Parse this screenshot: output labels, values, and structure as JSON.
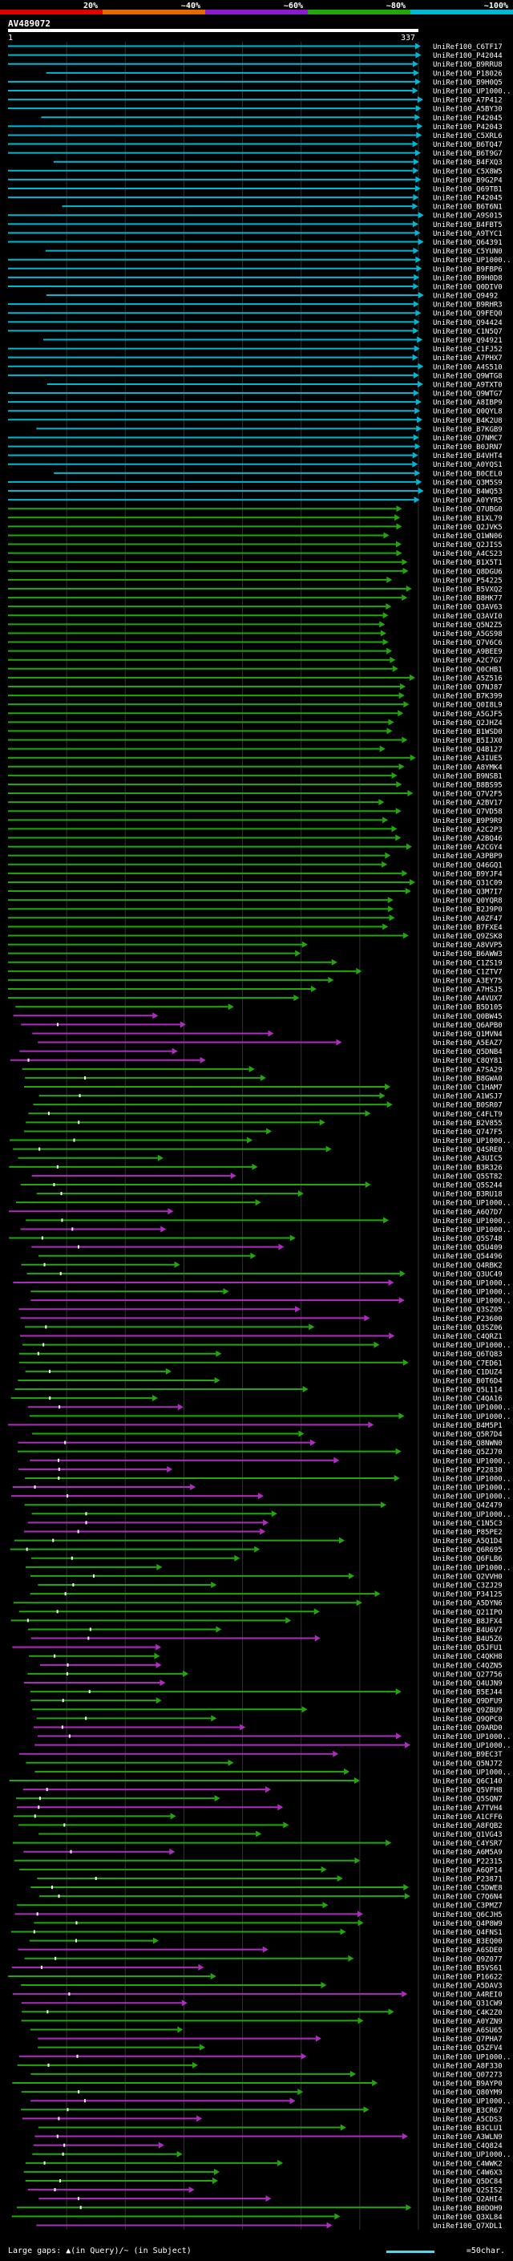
{
  "query_id": "AV489072",
  "length_start": "1",
  "length_end": "337",
  "legend": {
    "ticks": [
      "20%",
      "~40%",
      "~60%",
      "~80%",
      "~100%"
    ],
    "colors": [
      "#e00000",
      "#e46a00",
      "#8c1ad1",
      "#22a80b",
      "#00b8d4"
    ]
  },
  "footer": {
    "gaps_text": "Large gaps: ▲(in Query)/~ (in Subject)",
    "scale_text": "=50char."
  },
  "subjects": [
    "UniRef100_C6TF17",
    "UniRef100_P42044",
    "UniRef100_B9RRU8",
    "UniRef100_P18026",
    "UniRef100_B9H0Q5",
    "UniRef100_UP1000..",
    "UniRef100_A7P412",
    "UniRef100_A5BY30",
    "UniRef100_P42045",
    "UniRef100_P42043",
    "UniRef100_C5XRL6",
    "UniRef100_B6TQ47",
    "UniRef100_B6T9G7",
    "UniRef100_B4FXQ3",
    "UniRef100_C5X8W5",
    "UniRef100_B9G2P4",
    "UniRef100_Q69TB1",
    "UniRef100_P42045",
    "UniRef100_B6T6N1",
    "UniRef100_A9S015",
    "UniRef100_B4FBT5",
    "UniRef100_A9TYC1",
    "UniRef100_Q64391",
    "UniRef100_C5YUN0",
    "UniRef100_UP1000..",
    "UniRef100_B9FBP6",
    "UniRef100_B9H0D8",
    "UniRef100_Q0DIV0",
    "UniRef100_Q9492",
    "UniRef100_B9RHR3",
    "UniRef100_Q9FEQ0",
    "UniRef100_Q94424",
    "UniRef100_C1N5Q7",
    "UniRef100_Q94921",
    "UniRef100_C1FJ52",
    "UniRef100_A7PHX7",
    "UniRef100_A4S510",
    "UniRef100_Q9WTG8",
    "UniRef100_A9TXT0",
    "UniRef100_Q9WTG7",
    "UniRef100_A8IBP9",
    "UniRef100_Q0QYL8",
    "UniRef100_B4K2U8",
    "UniRef100_B7KGB9",
    "UniRef100_Q7NMC7",
    "UniRef100_B0JRN7",
    "UniRef100_B4VHT4",
    "UniRef100_A0YQS1",
    "UniRef100_B0CEL0",
    "UniRef100_Q3M5S9",
    "UniRef100_B4WQ53",
    "UniRef100_A0YYR5",
    "UniRef100_Q7UBG0",
    "UniRef100_B1XL79",
    "UniRef100_Q2JVK5",
    "UniRef100_Q1WN06",
    "UniRef100_Q2JIS5",
    "UniRef100_A4CS23",
    "UniRef100_B1X5T1",
    "UniRef100_Q8DGU6",
    "UniRef100_P54225",
    "UniRef100_B5VXQ2",
    "UniRef100_B8HK77",
    "UniRef100_Q3AV63",
    "UniRef100_Q3AVI0",
    "UniRef100_Q5N2Z5",
    "UniRef100_A5GS98",
    "UniRef100_Q7V6C6",
    "UniRef100_A9BEE9",
    "UniRef100_A2C7G7",
    "UniRef100_Q0CHB1",
    "UniRef100_A5Z516",
    "UniRef100_Q7NJ87",
    "UniRef100_B7K399",
    "UniRef100_Q0I8L9",
    "UniRef100_A5GJF5",
    "UniRef100_Q2JHZ4",
    "UniRef100_B1WSD0",
    "UniRef100_B5IJX0",
    "UniRef100_Q4B127",
    "UniRef100_A3IUE5",
    "UniRef100_A8YMK4",
    "UniRef100_B9NSB1",
    "UniRef100_B8BS95",
    "UniRef100_Q7V2F5",
    "UniRef100_A2BV17",
    "UniRef100_Q7VD58",
    "UniRef100_B9P9R9",
    "UniRef100_A2C2P3",
    "UniRef100_A2BQ46",
    "UniRef100_A2CGY4",
    "UniRef100_A3PBP9",
    "UniRef100_Q46GQ1",
    "UniRef100_B9YJF4",
    "UniRef100_Q31C09",
    "UniRef100_Q3M7I7",
    "UniRef100_Q0YQR8",
    "UniRef100_B2J9P0",
    "UniRef100_A0ZF47",
    "UniRef100_B7FXE4",
    "UniRef100_Q9ZSK8",
    "UniRef100_A8VVP5",
    "UniRef100_B6AWW3",
    "UniRef100_C1ZS19",
    "UniRef100_C1ZTV7",
    "UniRef100_A3EY75",
    "UniRef100_A7HSJ5",
    "UniRef100_A4VUX7",
    "UniRef100_B5D105",
    "UniRef100_Q0BW45",
    "UniRef100_Q6APB0",
    "UniRef100_Q1MVN4",
    "UniRef100_A5EAZ7",
    "UniRef100_Q5DNB4",
    "UniRef100_C8QY81",
    "UniRef100_A7SA29",
    "UniRef100_B8GWA0",
    "UniRef100_C1HAM7",
    "UniRef100_A1WSJ7",
    "UniRef100_B0SR07",
    "UniRef100_C4FLT9",
    "UniRef100_B2V855",
    "UniRef100_Q747F5",
    "UniRef100_UP1000..",
    "UniRef100_Q4SRE0",
    "UniRef100_A3UIC5",
    "UniRef100_B3R326",
    "UniRef100_Q5ST82",
    "UniRef100_Q5S244",
    "UniRef100_B3RU18",
    "UniRef100_UP1000..",
    "UniRef100_A6Q7D7",
    "UniRef100_UP1000..",
    "UniRef100_UP1000..",
    "UniRef100_Q5S748",
    "UniRef100_Q5U409",
    "UniRef100_Q54496",
    "UniRef100_Q4RBK2",
    "UniRef100_Q3UC49",
    "UniRef100_UP1000..",
    "UniRef100_UP1000..",
    "UniRef100_UP1000..",
    "UniRef100_Q3SZ05",
    "UniRef100_P23600",
    "UniRef100_Q3SZ06",
    "UniRef100_C4QRZ1",
    "UniRef100_UP1000..",
    "UniRef100_Q6TQ83",
    "UniRef100_C7ED61",
    "UniRef100_C1DUZ4",
    "UniRef100_B0T6D4",
    "UniRef100_Q5L114",
    "UniRef100_C4QA16",
    "UniRef100_UP1000..",
    "UniRef100_UP1000..",
    "UniRef100_B4M5P1",
    "UniRef100_Q5R7D4",
    "UniRef100_Q8NWN0",
    "UniRef100_Q5ZJ70",
    "UniRef100_UP1000..",
    "UniRef100_P22830",
    "UniRef100_UP1000..",
    "UniRef100_UP1000..",
    "UniRef100_UP1000..",
    "UniRef100_Q4Z479",
    "UniRef100_UP1000..",
    "UniRef100_C1N5C3",
    "UniRef100_P85PE2",
    "UniRef100_A5Q1D4",
    "UniRef100_Q6R695",
    "UniRef100_Q6FLB6",
    "UniRef100_UP1000..",
    "UniRef100_Q2VVH0",
    "UniRef100_C3ZJ29",
    "UniRef100_P34125",
    "UniRef100_A5DYN6",
    "UniRef100_Q21IPO",
    "UniRef100_B8JFX4",
    "UniRef100_B4U6V7",
    "UniRef100_B4U5Z6",
    "UniRef100_Q5JFU1",
    "UniRef100_C4QKH8",
    "UniRef100_C4QZN5",
    "UniRef100_Q27756",
    "UniRef100_Q4UJN9",
    "UniRef100_B5EJ44",
    "UniRef100_Q9DFU9",
    "UniRef100_Q9ZBU9",
    "UniRef100_Q9QPC0",
    "UniRef100_Q9ARD0",
    "UniRef100_UP1000..",
    "UniRef100_UP1000..",
    "UniRef100_B9EC3T",
    "UniRef100_Q5NJ72",
    "UniRef100_UP1000..",
    "UniRef100_Q6C140",
    "UniRef100_Q5VFH8",
    "UniRef100_Q5SQN7",
    "UniRef100_A7TVH4",
    "UniRef100_A1CFF6",
    "UniRef100_A8FQB2",
    "UniRef100_Q1VG43",
    "UniRef100_C4YSR7",
    "UniRef100_A6M5A9",
    "UniRef100_P22315",
    "UniRef100_A6QP14",
    "UniRef100_P23871",
    "UniRef100_C5DWE8",
    "UniRef100_C7Q6N4",
    "UniRef100_C3PMZ7",
    "UniRef100_Q6CJH5",
    "UniRef100_Q4P8W9",
    "UniRef100_Q4FNS1",
    "UniRef100_B3EQ00",
    "UniRef100_A6SDE0",
    "UniRef100_Q9Z077",
    "UniRef100_B5VS61",
    "UniRef100_P16622",
    "UniRef100_A5DAV3",
    "UniRef100_A4REI0",
    "UniRef100_Q31CW9",
    "UniRef100_C4K2Z0",
    "UniRef100_A0YZN9",
    "UniRef100_A6SU65",
    "UniRef100_Q7PHA7",
    "UniRef100_Q5ZFV4",
    "UniRef100_UP1000..",
    "UniRef100_A8F330",
    "UniRef100_Q07273",
    "UniRef100_B9AYP0",
    "UniRef100_Q80YM9",
    "UniRef100_UP1000..",
    "UniRef100_B3CR67",
    "UniRef100_A5CDS3",
    "UniRef100_B3CLU1",
    "UniRef100_A3WLN9",
    "UniRef100_C4Q824",
    "UniRef100_UP1000..",
    "UniRef100_C4WWK2",
    "UniRef100_C4W6X3",
    "UniRef100_Q5DC84",
    "UniRef100_Q2SIS2",
    "UniRef100_Q2AHI4",
    "UniRef100_B0DOH9",
    "UniRef100_Q3XL84",
    "UniRef100_Q7XDL1"
  ]
}
